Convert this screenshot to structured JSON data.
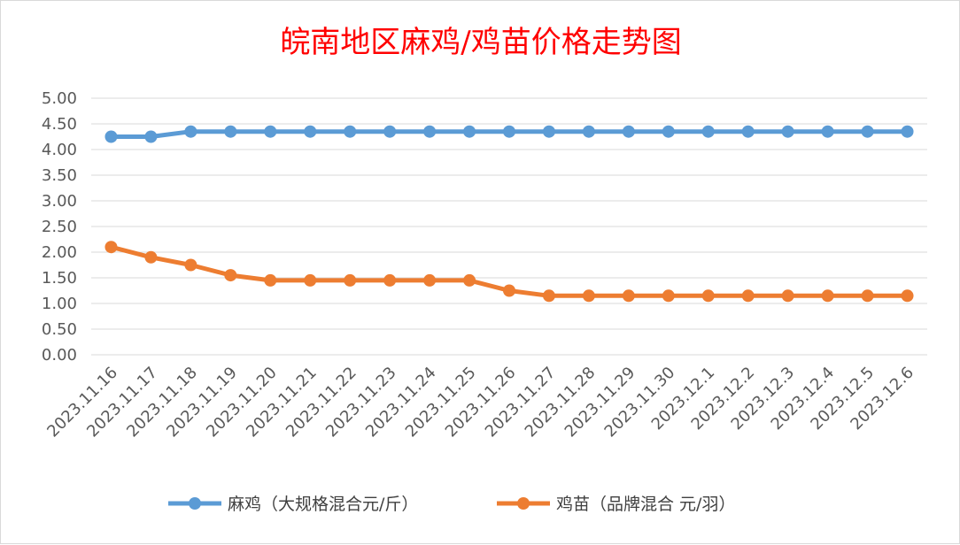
{
  "chart_data": {
    "type": "line",
    "title": "皖南地区麻鸡/鸡苗价格走势图",
    "categories": [
      "2023.11.16",
      "2023.11.17",
      "2023.11.18",
      "2023.11.19",
      "2023.11.20",
      "2023.11.21",
      "2023.11.22",
      "2023.11.23",
      "2023.11.24",
      "2023.11.25",
      "2023.11.26",
      "2023.11.27",
      "2023.11.28",
      "2023.11.29",
      "2023.11.30",
      "2023.12.1",
      "2023.12.2",
      "2023.12.3",
      "2023.12.4",
      "2023.12.5",
      "2023.12.6"
    ],
    "series": [
      {
        "name": "麻鸡（大规格混合元/斤）",
        "color": "#5b9bd5",
        "values": [
          4.25,
          4.25,
          4.35,
          4.35,
          4.35,
          4.35,
          4.35,
          4.35,
          4.35,
          4.35,
          4.35,
          4.35,
          4.35,
          4.35,
          4.35,
          4.35,
          4.35,
          4.35,
          4.35,
          4.35,
          4.35
        ]
      },
      {
        "name": "鸡苗（品牌混合 元/羽）",
        "color": "#ed7d31",
        "values": [
          2.1,
          1.9,
          1.75,
          1.55,
          1.45,
          1.45,
          1.45,
          1.45,
          1.45,
          1.45,
          1.25,
          1.15,
          1.15,
          1.15,
          1.15,
          1.15,
          1.15,
          1.15,
          1.15,
          1.15,
          1.15
        ]
      }
    ],
    "yticks": [
      "0.00",
      "0.50",
      "1.00",
      "1.50",
      "2.00",
      "2.50",
      "3.00",
      "3.50",
      "4.00",
      "4.50",
      "5.00"
    ],
    "ylim": [
      0,
      5
    ],
    "grid": true,
    "legend": "bottom"
  }
}
